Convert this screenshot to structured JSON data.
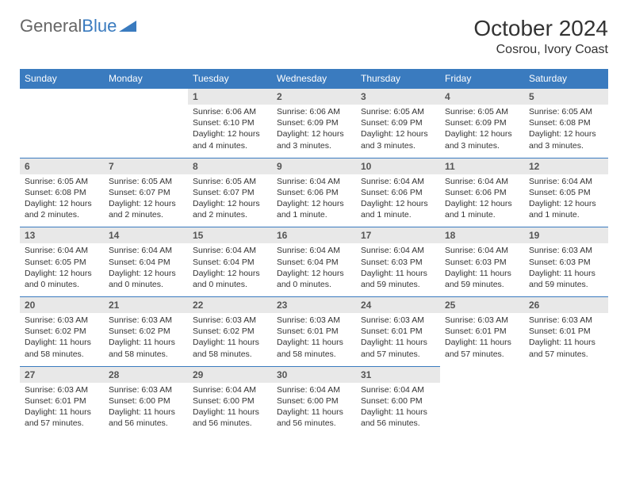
{
  "logo": {
    "part1": "General",
    "part2": "Blue"
  },
  "title": "October 2024",
  "location": "Cosrou, Ivory Coast",
  "colors": {
    "header_bg": "#3a7bbf",
    "header_text": "#ffffff",
    "daynum_bg": "#e8e8e8",
    "border": "#3a7bbf",
    "text": "#333333"
  },
  "day_names": [
    "Sunday",
    "Monday",
    "Tuesday",
    "Wednesday",
    "Thursday",
    "Friday",
    "Saturday"
  ],
  "weeks": [
    [
      null,
      null,
      {
        "n": "1",
        "sr": "Sunrise: 6:06 AM",
        "ss": "Sunset: 6:10 PM",
        "dl": "Daylight: 12 hours and 4 minutes."
      },
      {
        "n": "2",
        "sr": "Sunrise: 6:06 AM",
        "ss": "Sunset: 6:09 PM",
        "dl": "Daylight: 12 hours and 3 minutes."
      },
      {
        "n": "3",
        "sr": "Sunrise: 6:05 AM",
        "ss": "Sunset: 6:09 PM",
        "dl": "Daylight: 12 hours and 3 minutes."
      },
      {
        "n": "4",
        "sr": "Sunrise: 6:05 AM",
        "ss": "Sunset: 6:09 PM",
        "dl": "Daylight: 12 hours and 3 minutes."
      },
      {
        "n": "5",
        "sr": "Sunrise: 6:05 AM",
        "ss": "Sunset: 6:08 PM",
        "dl": "Daylight: 12 hours and 3 minutes."
      }
    ],
    [
      {
        "n": "6",
        "sr": "Sunrise: 6:05 AM",
        "ss": "Sunset: 6:08 PM",
        "dl": "Daylight: 12 hours and 2 minutes."
      },
      {
        "n": "7",
        "sr": "Sunrise: 6:05 AM",
        "ss": "Sunset: 6:07 PM",
        "dl": "Daylight: 12 hours and 2 minutes."
      },
      {
        "n": "8",
        "sr": "Sunrise: 6:05 AM",
        "ss": "Sunset: 6:07 PM",
        "dl": "Daylight: 12 hours and 2 minutes."
      },
      {
        "n": "9",
        "sr": "Sunrise: 6:04 AM",
        "ss": "Sunset: 6:06 PM",
        "dl": "Daylight: 12 hours and 1 minute."
      },
      {
        "n": "10",
        "sr": "Sunrise: 6:04 AM",
        "ss": "Sunset: 6:06 PM",
        "dl": "Daylight: 12 hours and 1 minute."
      },
      {
        "n": "11",
        "sr": "Sunrise: 6:04 AM",
        "ss": "Sunset: 6:06 PM",
        "dl": "Daylight: 12 hours and 1 minute."
      },
      {
        "n": "12",
        "sr": "Sunrise: 6:04 AM",
        "ss": "Sunset: 6:05 PM",
        "dl": "Daylight: 12 hours and 1 minute."
      }
    ],
    [
      {
        "n": "13",
        "sr": "Sunrise: 6:04 AM",
        "ss": "Sunset: 6:05 PM",
        "dl": "Daylight: 12 hours and 0 minutes."
      },
      {
        "n": "14",
        "sr": "Sunrise: 6:04 AM",
        "ss": "Sunset: 6:04 PM",
        "dl": "Daylight: 12 hours and 0 minutes."
      },
      {
        "n": "15",
        "sr": "Sunrise: 6:04 AM",
        "ss": "Sunset: 6:04 PM",
        "dl": "Daylight: 12 hours and 0 minutes."
      },
      {
        "n": "16",
        "sr": "Sunrise: 6:04 AM",
        "ss": "Sunset: 6:04 PM",
        "dl": "Daylight: 12 hours and 0 minutes."
      },
      {
        "n": "17",
        "sr": "Sunrise: 6:04 AM",
        "ss": "Sunset: 6:03 PM",
        "dl": "Daylight: 11 hours and 59 minutes."
      },
      {
        "n": "18",
        "sr": "Sunrise: 6:04 AM",
        "ss": "Sunset: 6:03 PM",
        "dl": "Daylight: 11 hours and 59 minutes."
      },
      {
        "n": "19",
        "sr": "Sunrise: 6:03 AM",
        "ss": "Sunset: 6:03 PM",
        "dl": "Daylight: 11 hours and 59 minutes."
      }
    ],
    [
      {
        "n": "20",
        "sr": "Sunrise: 6:03 AM",
        "ss": "Sunset: 6:02 PM",
        "dl": "Daylight: 11 hours and 58 minutes."
      },
      {
        "n": "21",
        "sr": "Sunrise: 6:03 AM",
        "ss": "Sunset: 6:02 PM",
        "dl": "Daylight: 11 hours and 58 minutes."
      },
      {
        "n": "22",
        "sr": "Sunrise: 6:03 AM",
        "ss": "Sunset: 6:02 PM",
        "dl": "Daylight: 11 hours and 58 minutes."
      },
      {
        "n": "23",
        "sr": "Sunrise: 6:03 AM",
        "ss": "Sunset: 6:01 PM",
        "dl": "Daylight: 11 hours and 58 minutes."
      },
      {
        "n": "24",
        "sr": "Sunrise: 6:03 AM",
        "ss": "Sunset: 6:01 PM",
        "dl": "Daylight: 11 hours and 57 minutes."
      },
      {
        "n": "25",
        "sr": "Sunrise: 6:03 AM",
        "ss": "Sunset: 6:01 PM",
        "dl": "Daylight: 11 hours and 57 minutes."
      },
      {
        "n": "26",
        "sr": "Sunrise: 6:03 AM",
        "ss": "Sunset: 6:01 PM",
        "dl": "Daylight: 11 hours and 57 minutes."
      }
    ],
    [
      {
        "n": "27",
        "sr": "Sunrise: 6:03 AM",
        "ss": "Sunset: 6:01 PM",
        "dl": "Daylight: 11 hours and 57 minutes."
      },
      {
        "n": "28",
        "sr": "Sunrise: 6:03 AM",
        "ss": "Sunset: 6:00 PM",
        "dl": "Daylight: 11 hours and 56 minutes."
      },
      {
        "n": "29",
        "sr": "Sunrise: 6:04 AM",
        "ss": "Sunset: 6:00 PM",
        "dl": "Daylight: 11 hours and 56 minutes."
      },
      {
        "n": "30",
        "sr": "Sunrise: 6:04 AM",
        "ss": "Sunset: 6:00 PM",
        "dl": "Daylight: 11 hours and 56 minutes."
      },
      {
        "n": "31",
        "sr": "Sunrise: 6:04 AM",
        "ss": "Sunset: 6:00 PM",
        "dl": "Daylight: 11 hours and 56 minutes."
      },
      null,
      null
    ]
  ]
}
